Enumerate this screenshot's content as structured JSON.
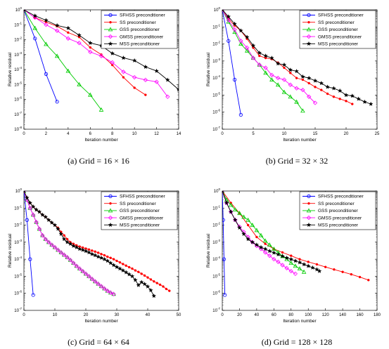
{
  "chart_data": [
    {
      "type": "line",
      "caption": "(a)  Grid = 16 × 16",
      "xlabel": "Iteration number",
      "ylabel": "Relative residual",
      "xlim": [
        0,
        14
      ],
      "xticks": [
        0,
        2,
        4,
        6,
        8,
        10,
        12,
        14
      ],
      "ylim_exp": [
        -8,
        0
      ],
      "yscale": "log",
      "legend_position": "top-right",
      "series": [
        {
          "name": "SFHSS preconditioner",
          "color": "#0000ff",
          "marker": "circle",
          "x": [
            0,
            1,
            2,
            3
          ],
          "y": [
            1,
            0.012,
            5e-05,
            7e-07
          ]
        },
        {
          "name": "SS preconditioner",
          "color": "#ff0000",
          "marker": "dot",
          "x": [
            0,
            1,
            2,
            3,
            4,
            5,
            6,
            7,
            8,
            9,
            10,
            11
          ],
          "y": [
            1,
            0.3,
            0.15,
            0.08,
            0.03,
            0.015,
            0.003,
            0.001,
            0.0002,
            3e-05,
            6e-06,
            2e-06
          ]
        },
        {
          "name": "GSS preconditioner",
          "color": "#00cc00",
          "marker": "triangle",
          "x": [
            0,
            1,
            2,
            3,
            4,
            5,
            6,
            7
          ],
          "y": [
            1,
            0.06,
            0.005,
            0.0008,
            8e-05,
            1e-05,
            2e-06,
            2e-07
          ]
        },
        {
          "name": "GMSS preconditioner",
          "color": "#ff00ff",
          "marker": "diamond",
          "x": [
            0,
            1,
            2,
            3,
            4,
            5,
            6,
            7,
            8,
            9,
            10,
            11,
            12,
            13
          ],
          "y": [
            1,
            0.3,
            0.1,
            0.04,
            0.012,
            0.006,
            0.0015,
            0.0008,
            0.0003,
            7e-05,
            3e-05,
            2e-05,
            1.5e-05,
            1.5e-06
          ]
        },
        {
          "name": "MSS preconditioner",
          "color": "#000000",
          "marker": "star",
          "x": [
            0,
            1,
            2,
            3,
            4,
            5,
            6,
            7,
            8,
            9,
            10,
            11,
            12,
            13,
            14
          ],
          "y": [
            1,
            0.4,
            0.2,
            0.09,
            0.06,
            0.02,
            0.006,
            0.004,
            0.0012,
            0.0006,
            0.0004,
            0.00015,
            8e-05,
            2e-05,
            4.5e-06
          ]
        }
      ]
    },
    {
      "type": "line",
      "caption": "(b)  Grid = 32 × 32",
      "xlabel": "Iteration number",
      "ylabel": "Relative residual",
      "xlim": [
        0,
        25
      ],
      "xticks": [
        0,
        5,
        10,
        15,
        20,
        25
      ],
      "ylim_exp": [
        -7,
        0
      ],
      "yscale": "log",
      "legend_position": "top-right",
      "series": [
        {
          "name": "SFHSS preconditioner",
          "color": "#0000ff",
          "marker": "circle",
          "x": [
            0,
            1,
            2,
            3
          ],
          "y": [
            1,
            0.015,
            8e-05,
            7e-07
          ]
        },
        {
          "name": "SS preconditioner",
          "color": "#ff0000",
          "marker": "dot",
          "x": [
            0,
            1,
            2,
            3,
            4,
            5,
            6,
            7,
            8,
            9,
            10,
            11,
            12,
            13,
            14,
            15,
            16,
            17,
            18,
            19,
            20,
            21
          ],
          "y": [
            1,
            0.3,
            0.12,
            0.06,
            0.02,
            0.006,
            0.002,
            0.0015,
            0.0013,
            0.0008,
            0.0004,
            0.0002,
            0.0001,
            8e-05,
            5e-05,
            3e-05,
            2e-05,
            1.2e-05,
            8e-06,
            6e-06,
            4.5e-06,
            3e-06
          ]
        },
        {
          "name": "GSS preconditioner",
          "color": "#00cc00",
          "marker": "triangle",
          "x": [
            0,
            1,
            2,
            3,
            4,
            5,
            6,
            7,
            8,
            9,
            10,
            11,
            12,
            13
          ],
          "y": [
            1,
            0.2,
            0.05,
            0.01,
            0.004,
            0.0015,
            0.0006,
            0.0002,
            8e-05,
            4e-05,
            1.5e-05,
            8e-06,
            4e-06,
            1.2e-06
          ]
        },
        {
          "name": "GMSS preconditioner",
          "color": "#ff00ff",
          "marker": "diamond",
          "x": [
            0,
            1,
            2,
            3,
            4,
            5,
            6,
            7,
            8,
            9,
            10,
            11,
            12,
            13,
            14,
            15
          ],
          "y": [
            1,
            0.25,
            0.07,
            0.015,
            0.006,
            0.0015,
            0.0006,
            0.0004,
            0.00015,
            0.0001,
            8e-05,
            4e-05,
            2.5e-05,
            2e-05,
            8e-06,
            3.5e-06
          ]
        },
        {
          "name": "MSS preconditioner",
          "color": "#000000",
          "marker": "star",
          "x": [
            0,
            1,
            2,
            3,
            4,
            5,
            6,
            7,
            8,
            9,
            10,
            11,
            12,
            13,
            14,
            15,
            16,
            17,
            18,
            19,
            20,
            21,
            22,
            23,
            24
          ],
          "y": [
            1,
            0.4,
            0.15,
            0.06,
            0.025,
            0.008,
            0.003,
            0.002,
            0.0015,
            0.0007,
            0.0006,
            0.0003,
            0.00025,
            0.00012,
            0.0001,
            7e-05,
            5e-05,
            3e-05,
            2.5e-05,
            1.8e-05,
            1e-05,
            9e-06,
            6e-06,
            4e-06,
            3e-06
          ]
        }
      ]
    },
    {
      "type": "line",
      "caption": "(c)  Grid = 64 × 64",
      "xlabel": "Iteration number",
      "ylabel": "Relative residual",
      "xlim": [
        0,
        50
      ],
      "xticks": [
        0,
        10,
        20,
        30,
        40,
        50
      ],
      "ylim_exp": [
        -7,
        0
      ],
      "yscale": "log",
      "legend_position": "top-right",
      "series": [
        {
          "name": "SFHSS preconditioner",
          "color": "#0000ff",
          "marker": "circle",
          "x": [
            0,
            1,
            2,
            3
          ],
          "y": [
            1,
            0.02,
            0.0001,
            8e-07
          ]
        },
        {
          "name": "SS preconditioner",
          "color": "#ff0000",
          "marker": "dot",
          "x": [
            0,
            1,
            2,
            3,
            4,
            5,
            6,
            7,
            8,
            9,
            10,
            11,
            12,
            13,
            14,
            15,
            16,
            17,
            18,
            19,
            20,
            21,
            22,
            23,
            24,
            25,
            26,
            27,
            28,
            29,
            30,
            31,
            32,
            33,
            34,
            35,
            36,
            37,
            38,
            39,
            40,
            41,
            42,
            43,
            44,
            45,
            46,
            47
          ],
          "y": [
            1,
            0.4,
            0.2,
            0.12,
            0.08,
            0.06,
            0.04,
            0.03,
            0.02,
            0.014,
            0.01,
            0.007,
            0.004,
            0.0025,
            0.0015,
            0.001,
            0.0008,
            0.00065,
            0.00055,
            0.00048,
            0.00042,
            0.00037,
            0.00032,
            0.00028,
            0.00024,
            0.0002,
            0.00017,
            0.00014,
            0.00012,
            0.0001,
            8e-05,
            6.5e-05,
            5.2e-05,
            4.2e-05,
            3.4e-05,
            2.8e-05,
            2.2e-05,
            1.8e-05,
            1.4e-05,
            1.1e-05,
            8.5e-06,
            6.5e-06,
            5e-06,
            4e-06,
            3.2e-06,
            2.5e-06,
            1.8e-06,
            1.4e-06
          ]
        },
        {
          "name": "GSS preconditioner",
          "color": "#00cc00",
          "marker": "triangle",
          "x": [
            0,
            1,
            2,
            3,
            4,
            5,
            6,
            7,
            8,
            9,
            10,
            11,
            12,
            13,
            14,
            15,
            16,
            17,
            18,
            19,
            20,
            21,
            22,
            23,
            24,
            25,
            26,
            27,
            28,
            29
          ],
          "y": [
            1,
            0.3,
            0.1,
            0.04,
            0.015,
            0.006,
            0.0025,
            0.0015,
            0.001,
            0.0007,
            0.0005,
            0.00035,
            0.00025,
            0.00018,
            0.00013,
            9e-05,
            6e-05,
            4e-05,
            2.8e-05,
            2e-05,
            1.4e-05,
            1e-05,
            7e-06,
            5e-06,
            3.6e-06,
            2.6e-06,
            1.9e-06,
            1.4e-06,
            1.1e-06,
            9e-07
          ]
        },
        {
          "name": "GMSS preconditioner",
          "color": "#ff00ff",
          "marker": "diamond",
          "x": [
            0,
            1,
            2,
            3,
            4,
            5,
            6,
            7,
            8,
            9,
            10,
            11,
            12,
            13,
            14,
            15,
            16,
            17,
            18,
            19,
            20,
            21,
            22,
            23,
            24,
            25,
            26,
            27,
            28,
            29
          ],
          "y": [
            1,
            0.3,
            0.1,
            0.04,
            0.015,
            0.006,
            0.0025,
            0.0015,
            0.001,
            0.0007,
            0.0005,
            0.00035,
            0.00025,
            0.00018,
            0.00013,
            9e-05,
            6e-05,
            4e-05,
            2.8e-05,
            2e-05,
            1.4e-05,
            1e-05,
            7e-06,
            5e-06,
            3.6e-06,
            2.6e-06,
            1.9e-06,
            1.4e-06,
            1.1e-06,
            9e-07
          ]
        },
        {
          "name": "MSS preconditioner",
          "color": "#000000",
          "marker": "star",
          "x": [
            0,
            1,
            2,
            3,
            4,
            5,
            6,
            7,
            8,
            9,
            10,
            11,
            12,
            13,
            14,
            15,
            16,
            17,
            18,
            19,
            20,
            21,
            22,
            23,
            24,
            25,
            26,
            27,
            28,
            29,
            30,
            31,
            32,
            33,
            34,
            35,
            36,
            37,
            38,
            39,
            40,
            41,
            42
          ],
          "y": [
            1,
            0.4,
            0.2,
            0.12,
            0.08,
            0.06,
            0.04,
            0.03,
            0.02,
            0.014,
            0.01,
            0.006,
            0.003,
            0.0015,
            0.001,
            0.0008,
            0.0006,
            0.0005,
            0.0004,
            0.00035,
            0.0003,
            0.00025,
            0.0002,
            0.00017,
            0.00014,
            0.00012,
            0.0001,
            8e-05,
            6e-05,
            4.5e-05,
            3.5e-05,
            2.8e-05,
            2.2e-05,
            1.7e-05,
            1.3e-05,
            1e-05,
            6e-06,
            3e-06,
            4.5e-06,
            3.5e-06,
            2.5e-06,
            1.5e-06,
            7e-07
          ]
        }
      ]
    },
    {
      "type": "line",
      "caption": "(d)  Grid = 128 × 128",
      "xlabel": "Iteration number",
      "ylabel": "Relative residual",
      "xlim": [
        0,
        180
      ],
      "xticks": [
        0,
        20,
        40,
        60,
        80,
        100,
        120,
        140,
        160,
        180
      ],
      "ylim_exp": [
        -7,
        0
      ],
      "yscale": "log",
      "legend_position": "top-right",
      "series": [
        {
          "name": "SFHSS preconditioner",
          "color": "#0000ff",
          "marker": "circle",
          "x": [
            0,
            1,
            2,
            3
          ],
          "y": [
            1,
            0.02,
            0.0001,
            8e-07
          ]
        },
        {
          "name": "SS preconditioner",
          "color": "#ff0000",
          "marker": "dot",
          "x": [
            0,
            10,
            20,
            30,
            40,
            50,
            60,
            70,
            80,
            90,
            100,
            110,
            120,
            130,
            140,
            150,
            160,
            170
          ],
          "y": [
            1,
            0.2,
            0.05,
            0.01,
            0.002,
            0.0008,
            0.0004,
            0.00025,
            0.00016,
            0.0001,
            7e-05,
            5e-05,
            3.5e-05,
            2.5e-05,
            1.8e-05,
            1.3e-05,
            9e-06,
            6e-06
          ]
        },
        {
          "name": "GSS preconditioner",
          "color": "#00cc00",
          "marker": "triangle",
          "x": [
            0,
            5,
            10,
            15,
            20,
            25,
            30,
            35,
            40,
            45,
            50,
            55,
            60,
            65,
            70,
            75,
            80,
            85,
            90,
            95
          ],
          "y": [
            1,
            0.3,
            0.15,
            0.08,
            0.05,
            0.03,
            0.02,
            0.01,
            0.005,
            0.0025,
            0.0012,
            0.0007,
            0.0004,
            0.00025,
            0.00015,
            0.0001,
            6e-05,
            4e-05,
            2.8e-05,
            1.8e-05
          ]
        },
        {
          "name": "GMSS preconditioner",
          "color": "#ff00ff",
          "marker": "diamond",
          "x": [
            0,
            5,
            10,
            15,
            20,
            25,
            30,
            35,
            40,
            45,
            50,
            55,
            60,
            65,
            70,
            75,
            80,
            85
          ],
          "y": [
            1,
            0.2,
            0.06,
            0.02,
            0.008,
            0.004,
            0.002,
            0.001,
            0.0006,
            0.0004,
            0.00025,
            0.00016,
            0.0001,
            7e-05,
            4.5e-05,
            3e-05,
            2e-05,
            1.4e-05
          ]
        },
        {
          "name": "MSS preconditioner",
          "color": "#000000",
          "marker": "star",
          "x": [
            0,
            5,
            10,
            15,
            20,
            25,
            30,
            35,
            40,
            45,
            50,
            55,
            60,
            65,
            70,
            75,
            80,
            85,
            90,
            95,
            100,
            105,
            110,
            113
          ],
          "y": [
            1,
            0.2,
            0.06,
            0.02,
            0.007,
            0.003,
            0.0015,
            0.001,
            0.0007,
            0.0005,
            0.0004,
            0.0003,
            0.00024,
            0.00019,
            0.00015,
            0.00012,
            0.0001,
            8e-05,
            6.5e-05,
            5e-05,
            4e-05,
            3.2e-05,
            2.5e-05,
            2e-05
          ]
        }
      ]
    }
  ]
}
